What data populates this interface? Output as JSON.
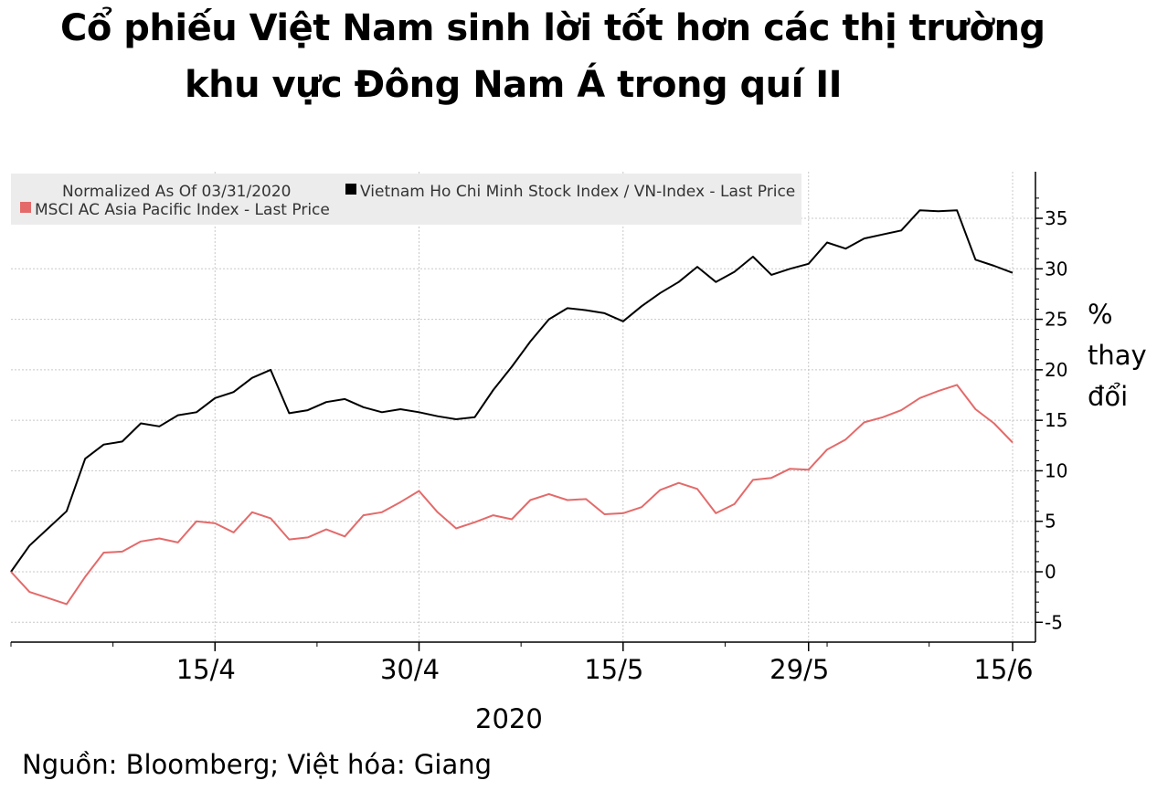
{
  "title": {
    "line1": "Cổ phiếu Việt Nam sinh lời tốt hơn các thị trường",
    "line2": "khu vực Đông Nam Á trong quí II"
  },
  "source": "Nguồn: Bloomberg; Việt hóa: Giang",
  "chart_data": {
    "type": "line",
    "legend_note": "Normalized As Of 03/31/2020",
    "legend_placement": "top-left",
    "ylabel": [
      "%",
      "thay",
      "đổi"
    ],
    "xlabel": "2020",
    "ylim": [
      -7,
      40
    ],
    "yticks": [
      -5,
      0,
      5,
      10,
      15,
      20,
      25,
      30,
      35
    ],
    "xticks": [
      {
        "label": "15/4",
        "index": 11
      },
      {
        "label": "30/4",
        "index": 22
      },
      {
        "label": "15/5",
        "index": 33
      },
      {
        "label": "29/5",
        "index": 43
      },
      {
        "label": "15/6",
        "index": 54
      }
    ],
    "grid": true,
    "series": [
      {
        "name": "Vietnam Ho Chi Minh Stock Index / VN-Index - Last Price",
        "color": "#000000",
        "values": [
          0,
          2.6,
          4.3,
          6.0,
          11.2,
          12.6,
          12.9,
          14.7,
          14.4,
          15.5,
          15.8,
          17.2,
          17.8,
          19.2,
          20.0,
          15.7,
          16.0,
          16.8,
          17.1,
          16.3,
          15.8,
          16.1,
          15.8,
          15.4,
          15.1,
          15.3,
          18.0,
          20.3,
          22.8,
          25.0,
          26.1,
          25.9,
          25.6,
          24.8,
          26.3,
          27.6,
          28.7,
          30.2,
          28.7,
          29.7,
          31.2,
          29.4,
          30.0,
          30.5,
          32.6,
          32.0,
          33.0,
          33.4,
          33.8,
          35.8,
          35.7,
          35.8,
          30.9,
          30.3,
          29.6
        ]
      },
      {
        "name": "MSCI AC Asia Pacific Index - Last Price",
        "color": "#e46a6a",
        "values": [
          0,
          -2.0,
          -2.6,
          -3.2,
          -0.5,
          1.9,
          2.0,
          3.0,
          3.3,
          2.9,
          5.0,
          4.8,
          3.9,
          5.9,
          5.3,
          3.2,
          3.4,
          4.2,
          3.5,
          5.6,
          5.9,
          6.9,
          8.0,
          5.9,
          4.3,
          4.9,
          5.6,
          5.2,
          7.1,
          7.7,
          7.1,
          7.2,
          5.7,
          5.8,
          6.4,
          8.1,
          8.8,
          8.2,
          5.8,
          6.7,
          9.1,
          9.3,
          10.2,
          10.1,
          12.1,
          13.1,
          14.8,
          15.3,
          16.0,
          17.2,
          17.9,
          18.5,
          16.1,
          14.7,
          12.8
        ]
      }
    ]
  }
}
